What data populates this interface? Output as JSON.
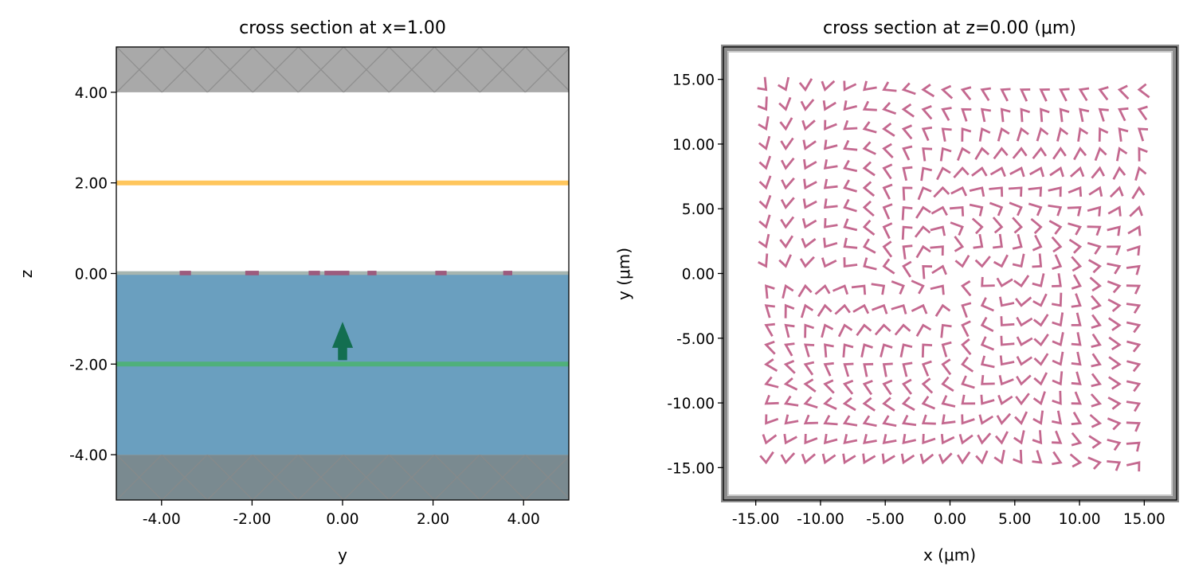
{
  "chart_data": [
    {
      "type": "cross-section",
      "title": "cross section at x=1.00",
      "xlabel": "y",
      "ylabel": "z",
      "xlim": [
        -5,
        5
      ],
      "ylim": [
        -5,
        5
      ],
      "xticks": [
        "-4.00",
        "-2.00",
        "0.00",
        "2.00",
        "4.00"
      ],
      "yticks": [
        "-4.00",
        "-2.00",
        "0.00",
        "2.00",
        "4.00"
      ],
      "pml_regions": [
        {
          "name": "top PML",
          "z": [
            4,
            5
          ],
          "color": "#a9a9a9"
        },
        {
          "name": "bottom PML",
          "z": [
            -5,
            -4
          ],
          "color": "#7a8a90"
        }
      ],
      "substrate": {
        "z": [
          -4,
          0
        ],
        "color": "#6a9fbf"
      },
      "surface_layer": {
        "z": [
          -0.03,
          0.05
        ],
        "color": "#a6b5b0"
      },
      "monitor": {
        "z": 2.0,
        "color": "#ffc65c"
      },
      "source": {
        "z": -2.0,
        "color": "#4fb07a",
        "arrow_y": 0.0,
        "arrow_z": [
          -1.9,
          -1.1
        ],
        "arrow_color": "#136e50"
      },
      "surface_structures": {
        "color": "#9c5b7d",
        "y_intervals": [
          [
            -3.6,
            -3.35
          ],
          [
            -2.15,
            -1.85
          ],
          [
            -0.75,
            -0.5
          ],
          [
            -0.4,
            0.15
          ],
          [
            0.55,
            0.75
          ],
          [
            2.05,
            2.3
          ],
          [
            3.55,
            3.75
          ]
        ]
      }
    },
    {
      "type": "cross-section",
      "title": "cross section at z=0.00 (μm)",
      "xlabel": "x (μm)",
      "ylabel": "y (μm)",
      "xlim": [
        -17.5,
        17.5
      ],
      "ylim": [
        -17.5,
        17.5
      ],
      "xticks": [
        "-15.00",
        "-10.00",
        "-5.00",
        "0.00",
        "5.00",
        "10.00",
        "15.00"
      ],
      "yticks": [
        "-15.00",
        "-10.00",
        "-5.00",
        "0.00",
        "5.00",
        "10.00",
        "15.00"
      ],
      "boundary_color": "#8c8c8c",
      "element_color": "#c4688f",
      "element_grid": {
        "x_range": [
          -14.2,
          14.6
        ],
        "y_range": [
          -14.6,
          14.2
        ],
        "rows": 20,
        "cols": 20
      }
    }
  ]
}
